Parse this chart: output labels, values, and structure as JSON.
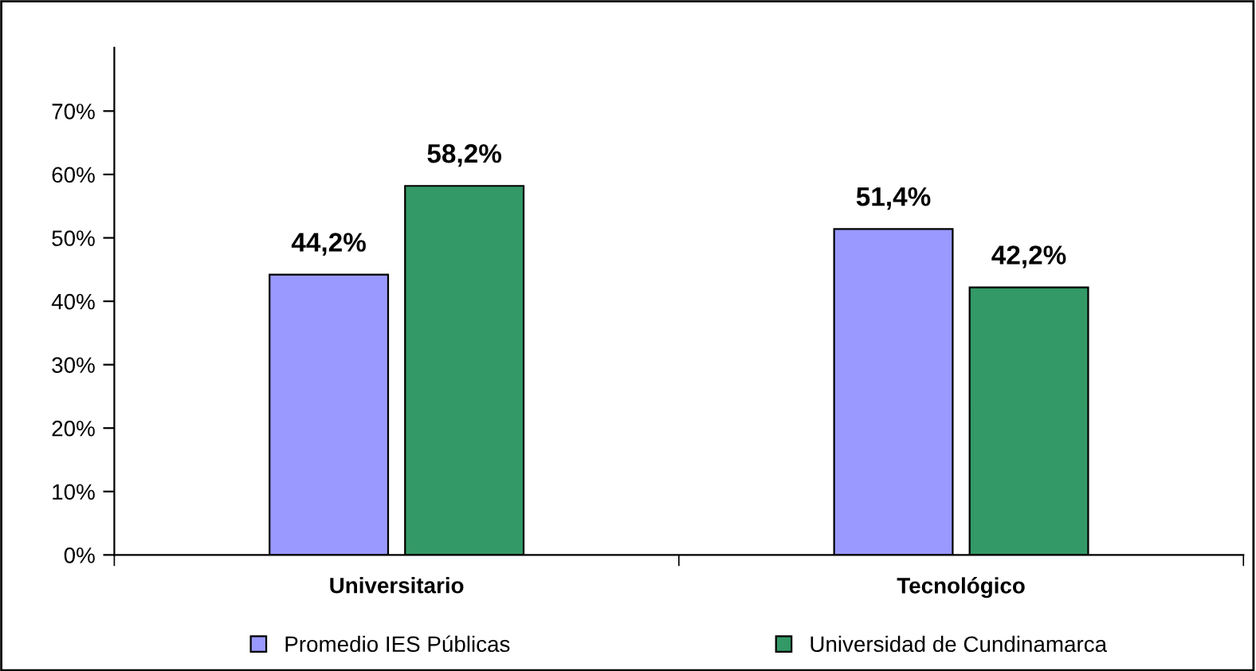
{
  "chart_data": {
    "type": "bar",
    "categories": [
      "Universitario",
      "Tecnológico"
    ],
    "series": [
      {
        "name": "Promedio IES Públicas",
        "color": "#9999ff",
        "values": [
          44.2,
          51.4
        ],
        "value_labels": [
          "44,2%",
          "51,4%"
        ]
      },
      {
        "name": "Universidad de Cundinamarca",
        "color": "#339966",
        "values": [
          58.2,
          42.2
        ],
        "value_labels": [
          "58,2%",
          "42,2%"
        ]
      }
    ],
    "ylim": [
      0,
      80
    ],
    "yticks": [
      {
        "value": 0,
        "label": "0%"
      },
      {
        "value": 10,
        "label": "10%"
      },
      {
        "value": 20,
        "label": "20%"
      },
      {
        "value": 30,
        "label": "30%"
      },
      {
        "value": 40,
        "label": "40%"
      },
      {
        "value": 50,
        "label": "50%"
      },
      {
        "value": 60,
        "label": "60%"
      },
      {
        "value": 70,
        "label": "70%"
      }
    ],
    "grid": false,
    "legend": "bottom"
  }
}
